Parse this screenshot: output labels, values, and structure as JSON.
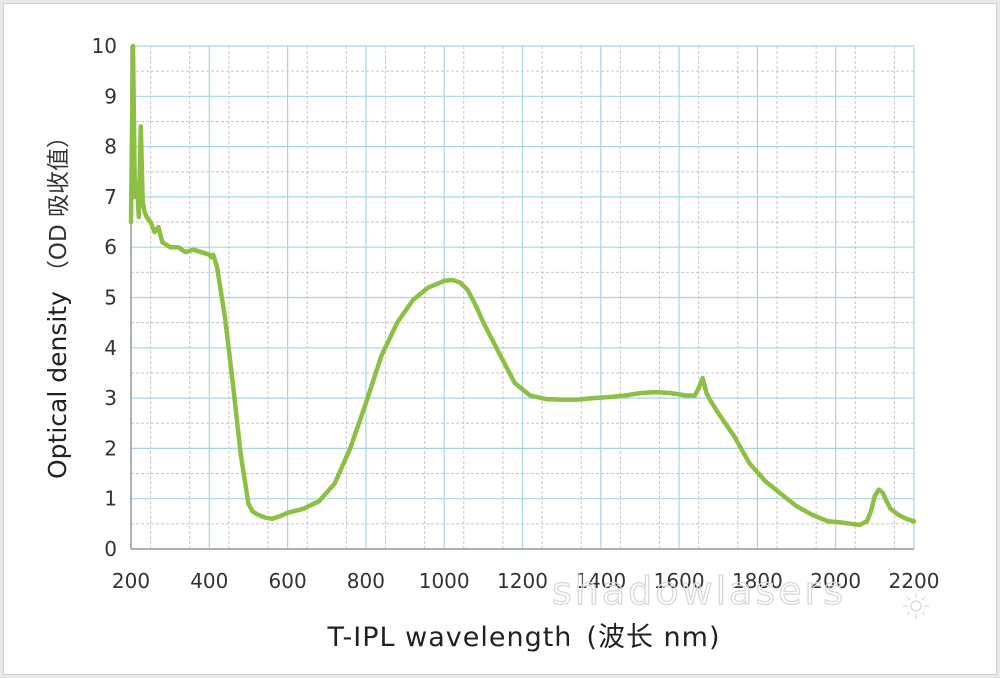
{
  "chart_data": {
    "type": "line",
    "xlabel": "T-IPL wavelength",
    "xlabel_unit": "(波长 nm)",
    "ylabel": "Optical density",
    "ylabel_unit": "（OD 吸收值）",
    "xlim": [
      200,
      2200
    ],
    "ylim": [
      0,
      10
    ],
    "x_ticks": [
      200,
      400,
      600,
      800,
      1000,
      1200,
      1400,
      1600,
      1800,
      2000,
      2200
    ],
    "y_ticks": [
      0,
      1,
      2,
      3,
      4,
      5,
      6,
      7,
      8,
      9,
      10
    ],
    "grid": true,
    "legend": "none",
    "series_color": "#8dbf44",
    "x": [
      200,
      205,
      210,
      215,
      220,
      225,
      230,
      235,
      240,
      250,
      260,
      270,
      280,
      300,
      320,
      340,
      360,
      380,
      400,
      405,
      410,
      420,
      440,
      460,
      480,
      500,
      510,
      520,
      540,
      560,
      580,
      600,
      640,
      680,
      720,
      760,
      800,
      840,
      880,
      920,
      960,
      1000,
      1020,
      1040,
      1060,
      1080,
      1100,
      1140,
      1180,
      1220,
      1260,
      1300,
      1340,
      1380,
      1420,
      1460,
      1500,
      1540,
      1580,
      1620,
      1640,
      1650,
      1660,
      1670,
      1680,
      1700,
      1740,
      1780,
      1820,
      1860,
      1900,
      1940,
      1980,
      2020,
      2060,
      2080,
      2090,
      2100,
      2110,
      2120,
      2130,
      2140,
      2160,
      2180,
      2200
    ],
    "y": [
      6.5,
      10.0,
      7.0,
      7.3,
      6.6,
      8.4,
      6.9,
      6.7,
      6.6,
      6.5,
      6.3,
      6.4,
      6.1,
      6.0,
      6.0,
      5.9,
      5.95,
      5.9,
      5.85,
      5.8,
      5.85,
      5.6,
      4.6,
      3.3,
      1.9,
      0.9,
      0.75,
      0.7,
      0.63,
      0.6,
      0.65,
      0.72,
      0.8,
      0.95,
      1.3,
      2.0,
      2.9,
      3.85,
      4.5,
      4.95,
      5.2,
      5.33,
      5.35,
      5.3,
      5.15,
      4.85,
      4.5,
      3.9,
      3.3,
      3.05,
      2.98,
      2.97,
      2.97,
      3.0,
      3.02,
      3.05,
      3.1,
      3.12,
      3.1,
      3.05,
      3.05,
      3.2,
      3.4,
      3.1,
      2.95,
      2.7,
      2.25,
      1.7,
      1.35,
      1.1,
      0.85,
      0.68,
      0.55,
      0.52,
      0.48,
      0.55,
      0.75,
      1.05,
      1.18,
      1.12,
      0.95,
      0.8,
      0.68,
      0.6,
      0.55
    ]
  },
  "watermark": "shadowlasers"
}
